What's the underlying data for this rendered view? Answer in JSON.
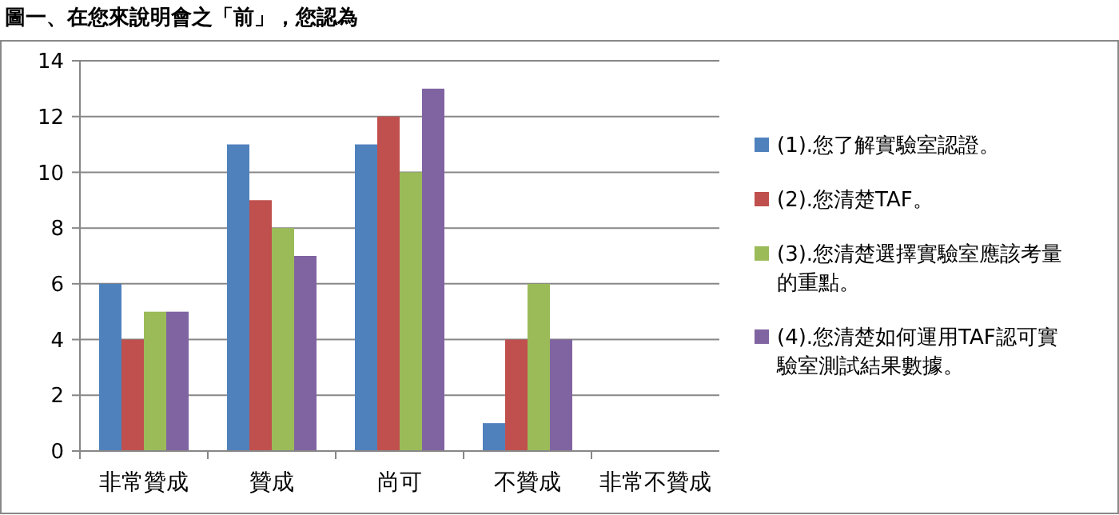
{
  "chart_data": {
    "type": "bar",
    "title": "圖一、在您來說明會之「前」，您認為",
    "categories": [
      "非常贊成",
      "贊成",
      "尚可",
      "不贊成",
      "非常不贊成"
    ],
    "series": [
      {
        "name": "(1).您了解實驗室認證。",
        "color": "#4f81bd",
        "values": [
          6,
          11,
          11,
          1,
          0
        ]
      },
      {
        "name": "(2).您清楚TAF。",
        "color": "#c0504d",
        "values": [
          4,
          9,
          12,
          4,
          0
        ]
      },
      {
        "name": "(3).您清楚選擇實驗室應該考量的重點。",
        "color": "#9bbb59",
        "values": [
          5,
          8,
          10,
          6,
          0
        ]
      },
      {
        "name": "(4).您清楚如何運用TAF認可實驗室測試結果數據。",
        "color": "#8064a2",
        "values": [
          5,
          7,
          13,
          4,
          0
        ]
      }
    ],
    "ylim": [
      0,
      14
    ],
    "yticks": [
      0,
      2,
      4,
      6,
      8,
      10,
      12,
      14
    ],
    "grid": "y",
    "legend": "right"
  }
}
